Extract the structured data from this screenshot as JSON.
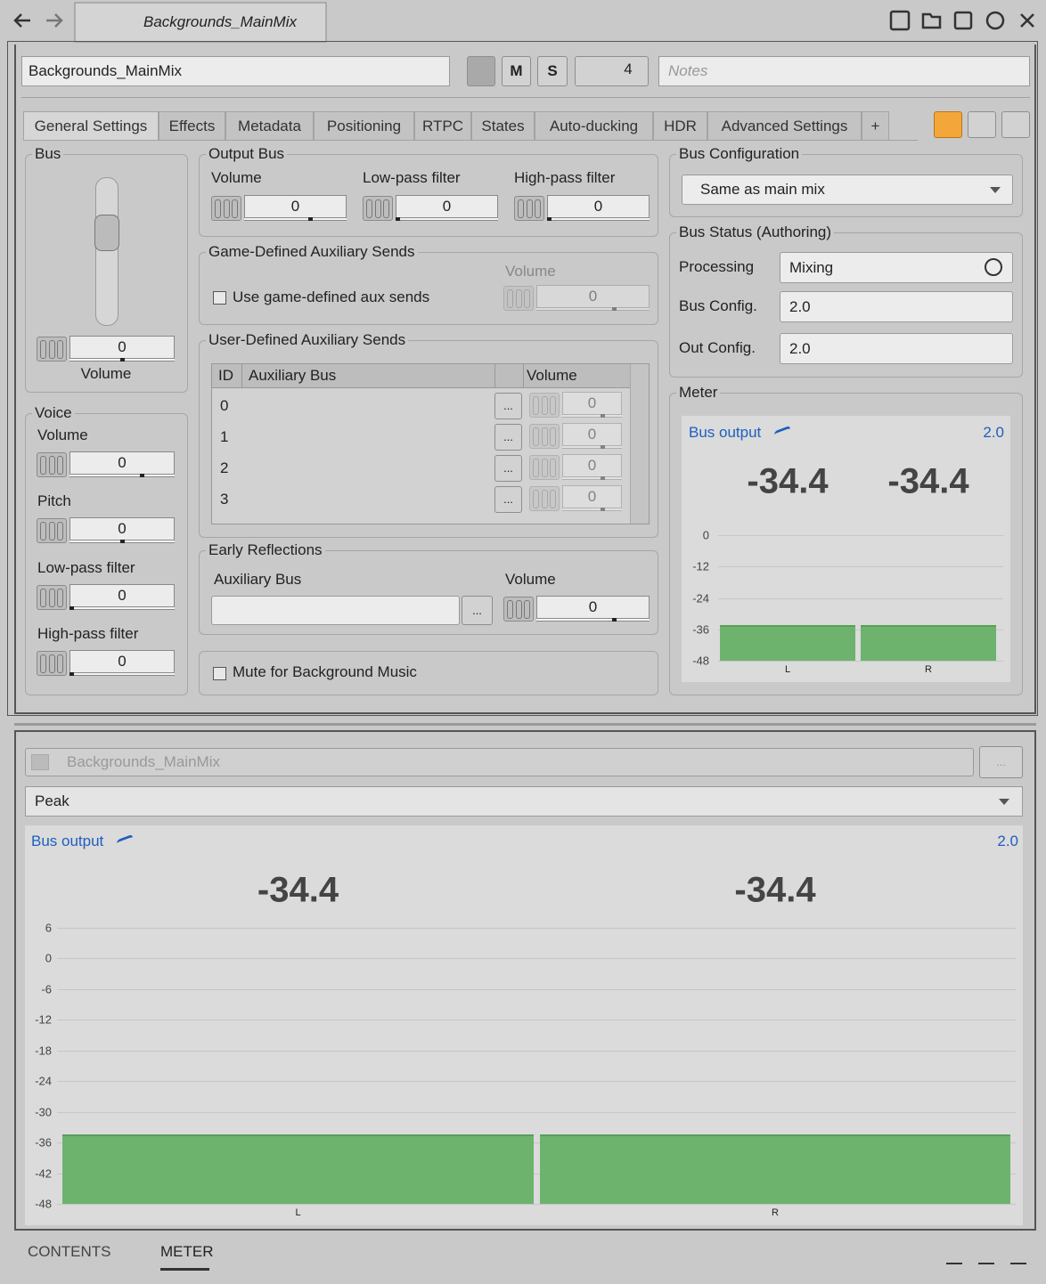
{
  "header": {
    "tab_title": "Backgrounds_MainMix"
  },
  "toolbar": {
    "name": "Backgrounds_MainMix",
    "mute": "M",
    "solo": "S",
    "share_count": 4,
    "notes_placeholder": "Notes"
  },
  "tabs": [
    "General Settings",
    "Effects",
    "Metadata",
    "Positioning",
    "RTPC",
    "States",
    "Auto-ducking",
    "HDR",
    "Advanced Settings",
    "+"
  ],
  "browse_button": "...",
  "bus": {
    "title": "Bus",
    "volume": 0,
    "volume_label": "Volume"
  },
  "voice": {
    "title": "Voice",
    "fields": [
      {
        "label": "Volume",
        "value": 0
      },
      {
        "label": "Pitch",
        "value": 0
      },
      {
        "label": "Low-pass filter",
        "value": 0
      },
      {
        "label": "High-pass filter",
        "value": 0
      }
    ]
  },
  "output_bus": {
    "title": "Output Bus",
    "fields": [
      {
        "label": "Volume",
        "value": 0
      },
      {
        "label": "Low-pass filter",
        "value": 0
      },
      {
        "label": "High-pass filter",
        "value": 0
      }
    ]
  },
  "game_aux": {
    "title": "Game-Defined Auxiliary Sends",
    "checkbox": "Use game-defined aux sends",
    "volume_label": "Volume",
    "volume": 0
  },
  "user_aux": {
    "title": "User-Defined Auxiliary Sends",
    "columns": [
      "ID",
      "Auxiliary Bus",
      "Volume"
    ],
    "rows": [
      {
        "id": 0,
        "volume": 0
      },
      {
        "id": 1,
        "volume": 0
      },
      {
        "id": 2,
        "volume": 0
      },
      {
        "id": 3,
        "volume": 0
      }
    ]
  },
  "early_reflections": {
    "title": "Early Reflections",
    "aux_label": "Auxiliary Bus",
    "volume_label": "Volume",
    "volume": 0
  },
  "mute_bg": "Mute for Background Music",
  "bus_config": {
    "title": "Bus Configuration",
    "value": "Same as main mix"
  },
  "bus_status": {
    "title": "Bus Status (Authoring)",
    "rows": [
      {
        "label": "Processing",
        "value": "Mixing"
      },
      {
        "label": "Bus Config.",
        "value": "2.0"
      },
      {
        "label": "Out Config.",
        "value": "2.0"
      }
    ]
  },
  "meter_panel": {
    "title": "Meter",
    "label": "Bus output",
    "channel_config": "2.0",
    "categories": [
      "L",
      "R"
    ],
    "values": [
      -34.4,
      -34.4
    ],
    "ylim": [
      -48,
      0
    ],
    "yticks": [
      0,
      -12,
      -24,
      -36,
      -48
    ],
    "color": "#6db36d"
  },
  "meter_view": {
    "object": "Backgrounds_MainMix",
    "mode": "Peak",
    "label": "Bus output",
    "channel_config": "2.0",
    "categories": [
      "L",
      "R"
    ],
    "values": [
      -34.4,
      -34.4
    ],
    "ylim": [
      -48,
      6
    ],
    "yticks": [
      6,
      0,
      -6,
      -12,
      -18,
      -24,
      -30,
      -36,
      -42,
      -48
    ],
    "color": "#6db36d"
  },
  "bottom_tabs": [
    "CONTENTS",
    "METER"
  ]
}
